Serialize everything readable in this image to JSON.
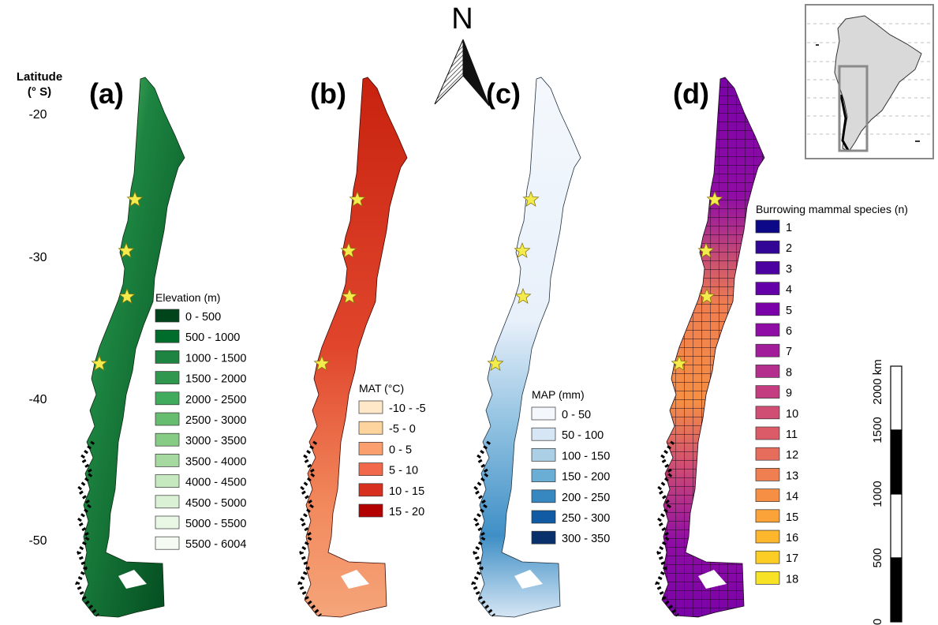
{
  "latitude_axis": {
    "title_line1": "Latitude",
    "title_line2": "(° S)",
    "ticks": [
      "-20",
      "-30",
      "-40",
      "-50"
    ]
  },
  "north_arrow": {
    "label": "N"
  },
  "panels": [
    {
      "id": "a",
      "label": "(a)",
      "legend": {
        "title": "Elevation (m)",
        "items": [
          {
            "label": "0 - 500",
            "color": "#00441b"
          },
          {
            "label": "500 - 1000",
            "color": "#006d2c"
          },
          {
            "label": "1000 - 1500",
            "color": "#1d8541"
          },
          {
            "label": "1500 - 2000",
            "color": "#2f974e"
          },
          {
            "label": "2000 - 2500",
            "color": "#41ab5d"
          },
          {
            "label": "2500 - 3000",
            "color": "#66bd6f"
          },
          {
            "label": "3000 - 3500",
            "color": "#86cc85"
          },
          {
            "label": "3500 - 4000",
            "color": "#a5d9a0"
          },
          {
            "label": "4000 - 4500",
            "color": "#c7e9c0"
          },
          {
            "label": "4500 - 5000",
            "color": "#daf1d5"
          },
          {
            "label": "5000 - 5500",
            "color": "#e9f7e5"
          },
          {
            "label": "5500 - 6004",
            "color": "#f5fbf3"
          }
        ]
      }
    },
    {
      "id": "b",
      "label": "(b)",
      "legend": {
        "title": "MAT (°C)",
        "items": [
          {
            "label": "-10 - -5",
            "color": "#fee8c8"
          },
          {
            "label": "-5 - 0",
            "color": "#fdd49e"
          },
          {
            "label": "0 - 5",
            "color": "#fc9f6e"
          },
          {
            "label": "5 - 10",
            "color": "#f1694a"
          },
          {
            "label": "10 - 15",
            "color": "#d7301f"
          },
          {
            "label": "15 - 20",
            "color": "#b30000"
          }
        ]
      }
    },
    {
      "id": "c",
      "label": "(c)",
      "legend": {
        "title": "MAP (mm)",
        "items": [
          {
            "label": "0 - 50",
            "color": "#f4f8fd"
          },
          {
            "label": "50 - 100",
            "color": "#d6e6f4"
          },
          {
            "label": "100 - 150",
            "color": "#abcfe5"
          },
          {
            "label": "150 - 200",
            "color": "#6aaed6"
          },
          {
            "label": "200 - 250",
            "color": "#3787c0"
          },
          {
            "label": "250 - 300",
            "color": "#105ba4"
          },
          {
            "label": "300 - 350",
            "color": "#08306b"
          }
        ]
      }
    },
    {
      "id": "d",
      "label": "(d)",
      "legend": {
        "title": "Burrowing mammal species (n)",
        "items": [
          {
            "label": "1",
            "color": "#0d0887"
          },
          {
            "label": "2",
            "color": "#330597"
          },
          {
            "label": "3",
            "color": "#4c02a1"
          },
          {
            "label": "4",
            "color": "#6300a7"
          },
          {
            "label": "5",
            "color": "#7a02a8"
          },
          {
            "label": "6",
            "color": "#8f0da4"
          },
          {
            "label": "7",
            "color": "#a21d9a"
          },
          {
            "label": "8",
            "color": "#b42e8d"
          },
          {
            "label": "9",
            "color": "#c33d80"
          },
          {
            "label": "10",
            "color": "#d04d73"
          },
          {
            "label": "11",
            "color": "#db5c68"
          },
          {
            "label": "12",
            "color": "#e66c5c"
          },
          {
            "label": "13",
            "color": "#ef7e50"
          },
          {
            "label": "14",
            "color": "#f68f44"
          },
          {
            "label": "15",
            "color": "#fba238"
          },
          {
            "label": "16",
            "color": "#feb72d"
          },
          {
            "label": "17",
            "color": "#fccd25"
          },
          {
            "label": "18",
            "color": "#f7e225"
          }
        ]
      }
    }
  ],
  "scale_bar": {
    "ticks": [
      "0",
      "500",
      "1000",
      "1500",
      "2000 km"
    ]
  },
  "markers": {
    "type": "star",
    "color": "#f4ec4c",
    "count_per_panel": 4
  },
  "inset": {
    "description_icon": "south-america-locator-icon"
  }
}
